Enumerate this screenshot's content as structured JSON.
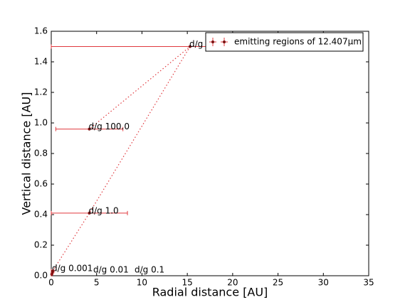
{
  "chart_data": {
    "type": "errorbar",
    "xlabel": "Radial distance [AU]",
    "ylabel": "Vertical distance [AU]",
    "xlim": [
      0,
      35
    ],
    "ylim": [
      0,
      1.6
    ],
    "xticks": [
      0,
      5,
      10,
      15,
      20,
      25,
      30,
      35
    ],
    "yticks": [
      {
        "value": 0,
        "label": "0.0"
      },
      0.2,
      0.4,
      0.6,
      0.8,
      {
        "value": 1,
        "label": "1.0"
      },
      1.2,
      1.4,
      1.6
    ],
    "legend": "upper right",
    "series": [
      {
        "name": "emitting regions of 12.407μm",
        "color": "#e0393e",
        "marker_color": "#7a1010",
        "x": [
          0.05,
          0.1,
          0.15,
          4.2,
          15.3,
          4.2
        ],
        "values": [
          0.01,
          0.02,
          0.03,
          0.41,
          1.5,
          0.96
        ],
        "xerr": [
          0.05,
          0.1,
          0.15,
          4.2,
          15.3,
          3.7
        ],
        "point_labels": [
          "d/g 0.001",
          "d/g 0.01",
          "d/g 0.1",
          "d/g 1.0",
          "d/g",
          "d/g 100.0"
        ]
      }
    ]
  }
}
